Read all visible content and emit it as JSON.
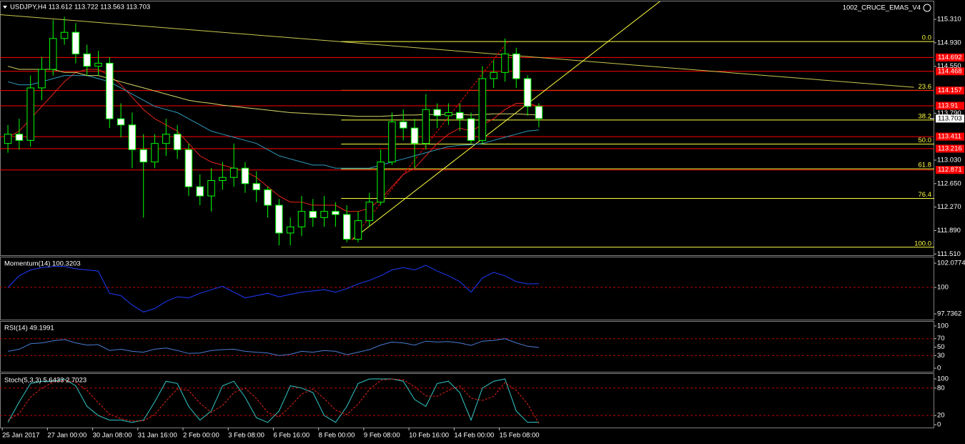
{
  "chart_data": [
    {
      "type": "candlestick",
      "title": "USDJPY,H4 113.612 113.722 113.563 113.703",
      "indicator": "1002_CRUCE_EMAS_V4",
      "x": [
        1,
        3,
        5,
        7,
        9,
        11,
        13,
        15,
        17,
        19,
        21,
        23,
        25,
        27,
        29,
        31,
        33,
        35,
        37,
        39,
        41,
        43,
        45,
        47,
        49,
        51,
        53,
        55,
        57,
        59,
        61,
        63,
        65,
        67,
        69,
        71,
        73,
        75,
        77,
        79,
        81,
        83,
        85,
        87,
        89,
        91,
        93,
        95
      ],
      "open": [
        113.3,
        113.45,
        113.35,
        114.2,
        114.5,
        115.0,
        115.1,
        114.75,
        114.55,
        114.6,
        113.7,
        113.6,
        113.2,
        113.0,
        113.3,
        113.45,
        113.2,
        112.6,
        112.45,
        112.7,
        112.75,
        112.9,
        112.65,
        112.55,
        112.3,
        111.85,
        111.95,
        112.2,
        112.1,
        112.2,
        112.15,
        111.75,
        112.05,
        112.35,
        113.0,
        113.65,
        113.55,
        113.3,
        113.85,
        113.75,
        113.8,
        113.7,
        113.35,
        114.35,
        114.45,
        114.75,
        114.35,
        113.9
      ],
      "high": [
        113.6,
        113.7,
        114.4,
        114.7,
        115.3,
        115.35,
        115.25,
        114.9,
        114.8,
        114.7,
        113.95,
        113.8,
        113.45,
        113.45,
        113.7,
        113.6,
        113.3,
        112.8,
        112.9,
        113.0,
        113.3,
        113.0,
        112.85,
        112.6,
        112.4,
        112.1,
        112.45,
        112.4,
        112.45,
        112.35,
        112.3,
        112.2,
        112.5,
        113.2,
        113.8,
        113.85,
        113.7,
        114.1,
        113.95,
        113.95,
        113.95,
        113.8,
        114.55,
        114.65,
        115.0,
        114.85,
        114.4,
        113.95
      ],
      "low": [
        113.15,
        113.2,
        113.25,
        114.0,
        114.4,
        114.9,
        114.6,
        114.4,
        114.4,
        113.55,
        113.4,
        112.9,
        112.1,
        112.9,
        113.1,
        113.05,
        112.45,
        112.3,
        112.2,
        112.55,
        112.6,
        112.5,
        112.35,
        112.1,
        111.65,
        111.65,
        111.8,
        111.95,
        111.95,
        111.95,
        111.7,
        111.7,
        111.95,
        112.3,
        112.95,
        113.35,
        112.9,
        113.2,
        113.55,
        113.6,
        113.5,
        113.3,
        113.3,
        114.2,
        114.3,
        114.2,
        113.75,
        113.563
      ],
      "close": [
        113.45,
        113.35,
        114.2,
        114.5,
        115.0,
        115.1,
        114.75,
        114.55,
        114.6,
        113.7,
        113.6,
        113.2,
        113.0,
        113.3,
        113.45,
        113.2,
        112.6,
        112.45,
        112.7,
        112.75,
        112.9,
        112.65,
        112.55,
        112.3,
        111.85,
        111.95,
        112.2,
        112.1,
        112.2,
        112.15,
        111.75,
        112.05,
        112.35,
        113.0,
        113.65,
        113.55,
        113.3,
        113.85,
        113.75,
        113.8,
        113.7,
        113.35,
        114.35,
        114.45,
        114.75,
        114.35,
        113.9,
        113.703
      ],
      "candle_color": "#00ff00",
      "series": [
        {
          "color": "#e8241c",
          "values": [
            113.4,
            113.5,
            113.7,
            113.9,
            114.1,
            114.3,
            114.45,
            114.5,
            114.5,
            114.4,
            114.25,
            114.05,
            113.85,
            113.7,
            113.6,
            113.5,
            113.3,
            113.1,
            113.0,
            112.95,
            112.9,
            112.85,
            112.75,
            112.6,
            112.45,
            112.35,
            112.35,
            112.3,
            112.3,
            112.3,
            112.2,
            112.2,
            112.25,
            112.4,
            112.6,
            112.8,
            112.9,
            113.1,
            113.3,
            113.45,
            113.55,
            113.5,
            113.6,
            113.7,
            113.85,
            113.95,
            113.95,
            113.9
          ]
        },
        {
          "color": "#2f9bbd",
          "values": [
            114.3,
            114.25,
            114.25,
            114.3,
            114.35,
            114.4,
            114.4,
            114.4,
            114.35,
            114.3,
            114.2,
            114.1,
            114.0,
            113.9,
            113.85,
            113.8,
            113.7,
            113.6,
            113.5,
            113.45,
            113.4,
            113.35,
            113.3,
            113.2,
            113.1,
            113.05,
            113.0,
            112.95,
            112.95,
            112.9,
            112.9,
            112.9,
            112.9,
            112.95,
            113.0,
            113.05,
            113.1,
            113.15,
            113.2,
            113.25,
            113.27,
            113.28,
            113.3,
            113.35,
            113.4,
            113.45,
            113.5,
            113.52
          ]
        },
        {
          "color": "#d6d66a",
          "values": [
            114.55,
            114.5,
            114.5,
            114.5,
            114.5,
            114.45,
            114.45,
            114.4,
            114.4,
            114.35,
            114.3,
            114.25,
            114.2,
            114.15,
            114.1,
            114.05,
            114.0,
            113.97,
            113.95,
            113.92,
            113.9,
            113.88,
            113.86,
            113.84,
            113.82,
            113.8,
            113.79,
            113.78,
            113.77,
            113.76,
            113.75,
            113.74,
            113.74,
            113.74,
            113.75,
            113.76,
            113.76,
            113.77,
            113.77,
            113.77,
            113.77,
            113.76,
            113.77,
            113.78,
            113.78,
            113.78,
            113.77,
            113.76
          ]
        }
      ],
      "trendlines": [
        {
          "color": "#c8c850",
          "x": [
            -1,
            161.4
          ],
          "values": [
            115.39,
            114.21
          ]
        },
        {
          "color": "#ffff40",
          "x": [
            61.9,
            116.7
          ],
          "values": [
            111.74,
            115.62
          ]
        },
        {
          "color": "#ff0000",
          "dash": true,
          "x": [
            61.9,
            89.5
          ],
          "values": [
            111.74,
            114.95
          ]
        }
      ],
      "hlines": [
        114.692,
        114.468,
        114.157,
        113.91,
        113.411,
        113.216,
        112.871
      ],
      "hline_color": "#ff0000",
      "fib_start_x": 60,
      "fib_color": "#ffff40",
      "fib_levels": [
        {
          "value": 114.95,
          "label": "0.0"
        },
        {
          "value": 114.16,
          "label": "23.6"
        },
        {
          "value": 113.68,
          "label": "38.2"
        },
        {
          "value": 113.29,
          "label": "50.0"
        },
        {
          "value": 112.89,
          "label": "61.8"
        },
        {
          "value": 112.41,
          "label": "76.4"
        },
        {
          "value": 111.62,
          "label": "100.0"
        }
      ],
      "current_price": 113.703,
      "xlim": [
        -0.4,
        165
      ],
      "xticks": [
        {
          "value": 0,
          "label": "25 Jan 2017"
        },
        {
          "value": 8,
          "label": "27 Jan 00:00"
        },
        {
          "value": 16,
          "label": "30 Jan 08:00"
        },
        {
          "value": 24,
          "label": "31 Jan 16:00"
        },
        {
          "value": 32,
          "label": "2 Feb 00:00"
        },
        {
          "value": 40,
          "label": "3 Feb 08:00"
        },
        {
          "value": 48,
          "label": "6 Feb 16:00"
        },
        {
          "value": 56,
          "label": "8 Feb 00:00"
        },
        {
          "value": 64,
          "label": "9 Feb 08:00"
        },
        {
          "value": 72,
          "label": "10 Feb 16:00"
        },
        {
          "value": 80,
          "label": "14 Feb 00:00"
        },
        {
          "value": 88,
          "label": "15 Feb 08:00"
        }
      ],
      "ylim": [
        111.49,
        115.6
      ],
      "yticks": [
        {
          "value": 115.31,
          "label": "115.310"
        },
        {
          "value": 114.93,
          "label": "114.930"
        },
        {
          "value": 114.55,
          "label": "114.550"
        },
        {
          "value": 113.79,
          "label": "113.790"
        },
        {
          "value": 113.03,
          "label": "113.030"
        },
        {
          "value": 112.65,
          "label": "112.650"
        },
        {
          "value": 112.27,
          "label": "112.270"
        },
        {
          "value": 111.89,
          "label": "111.890"
        },
        {
          "value": 111.51,
          "label": "111.510"
        }
      ]
    },
    {
      "type": "line",
      "title": "Momentum(14) 100.3203",
      "series": [
        {
          "color": "#1e3cff",
          "values": [
            100,
            101,
            101.5,
            101.7,
            101.8,
            101.8,
            101.6,
            101.5,
            101.4,
            99.5,
            99.3,
            98.5,
            97.9,
            98.2,
            98.8,
            99.2,
            99.1,
            99.5,
            99.8,
            100.1,
            99.6,
            99.1,
            99.3,
            99.5,
            99.2,
            99.4,
            99.6,
            99.7,
            99.8,
            99.6,
            99.9,
            100.3,
            100.6,
            101,
            101.5,
            101.7,
            101.5,
            101.9,
            101.4,
            101,
            100.5,
            99.6,
            100.8,
            101.3,
            101.0,
            100.5,
            100.3,
            100.32
          ]
        }
      ],
      "levels": [
        100
      ],
      "level_color": "#c00000",
      "ylim": [
        97.25,
        102.57
      ],
      "yticks": [
        102.0774,
        100,
        97.7362
      ]
    },
    {
      "type": "line",
      "title": "RSI(14) 49.1991",
      "series": [
        {
          "color": "#4a7bd0",
          "values": [
            40,
            45,
            58,
            60,
            65,
            68,
            60,
            55,
            56,
            42,
            45,
            40,
            38,
            45,
            48,
            42,
            35,
            36,
            42,
            44,
            45,
            40,
            38,
            36,
            30,
            33,
            40,
            38,
            42,
            40,
            32,
            38,
            44,
            55,
            62,
            60,
            55,
            64,
            62,
            63,
            60,
            54,
            64,
            66,
            70,
            60,
            52,
            49.2
          ]
        }
      ],
      "levels": [
        70,
        30
      ],
      "level_color": "#c00000",
      "ylim": [
        -8.5,
        110.2
      ],
      "yticks": [
        100,
        70,
        50,
        30,
        0
      ]
    },
    {
      "type": "line",
      "title": "Stoch(5,3,3) 5.6433 2.7023",
      "series": [
        {
          "color": "#33c8c8",
          "values": [
            5,
            50,
            90,
            95,
            95,
            100,
            85,
            40,
            20,
            10,
            10,
            5,
            10,
            50,
            95,
            90,
            40,
            10,
            30,
            85,
            95,
            60,
            15,
            5,
            30,
            85,
            80,
            70,
            20,
            5,
            40,
            90,
            100,
            100,
            100,
            95,
            55,
            40,
            90,
            95,
            70,
            10,
            80,
            95,
            100,
            30,
            5,
            5.6
          ]
        },
        {
          "color": "#e8241c",
          "dash": true,
          "values": [
            10,
            25,
            60,
            80,
            93,
            97,
            93,
            75,
            48,
            23,
            13,
            8,
            8,
            22,
            52,
            78,
            75,
            47,
            27,
            42,
            70,
            80,
            57,
            27,
            17,
            40,
            67,
            78,
            57,
            32,
            22,
            45,
            77,
            97,
            100,
            98,
            83,
            63,
            62,
            75,
            85,
            58,
            53,
            62,
            92,
            75,
            45,
            2.7
          ]
        }
      ],
      "levels": [
        80,
        20
      ],
      "level_color": "#c00000",
      "ylim": [
        -6.3,
        110.9
      ],
      "yticks": [
        100,
        80,
        20,
        0
      ]
    }
  ]
}
